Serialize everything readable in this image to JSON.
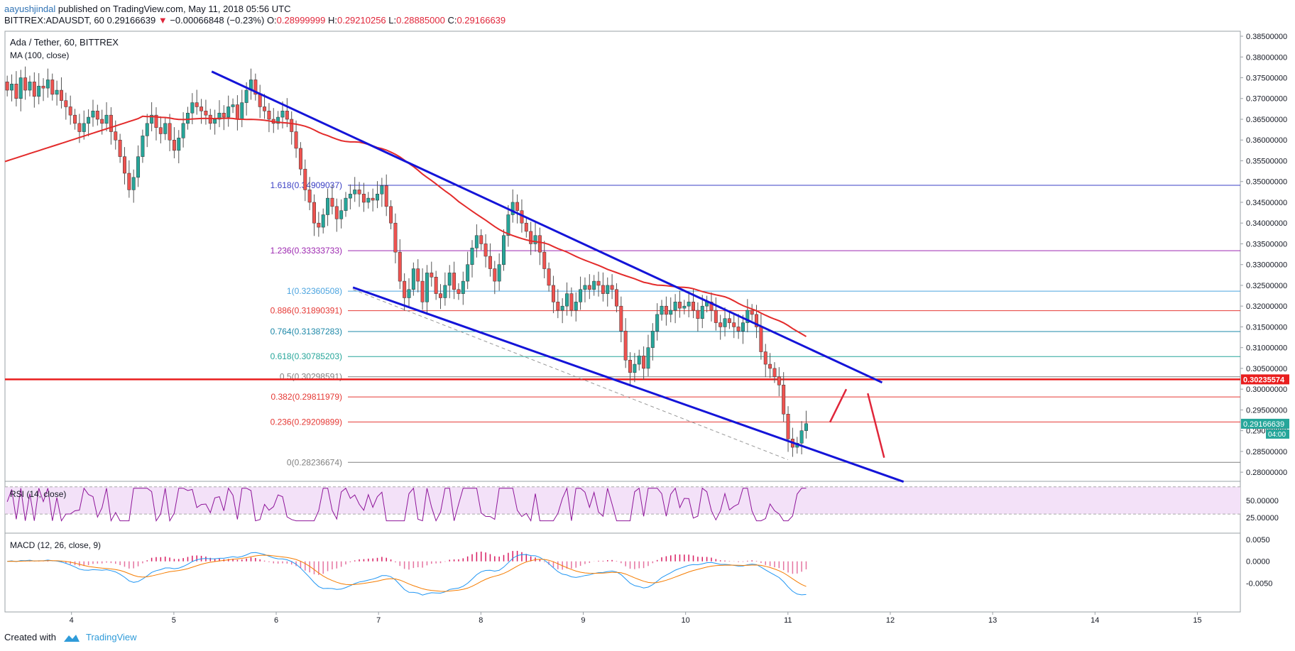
{
  "header": {
    "author": "aayushjindal",
    "published": " published on TradingView.com, May 11, 2018 05:56 UTC",
    "symbol": "BITTREX:ADAUSDT, 60",
    "last": "0.29166639",
    "arrow": "▼",
    "change": "−0.00066848 (−0.23%)",
    "o_label": "O:",
    "o": "0.28999999",
    "h_label": "H:",
    "h": "0.29210256",
    "l_label": "L:",
    "l": "0.28885000",
    "c_label": "C:",
    "c": "0.29166639"
  },
  "footer": {
    "created_with": "Created with",
    "brand": "TradingView"
  },
  "chart_data": {
    "type": "candlestick",
    "title": "Ada / Tether, 60, BITTREX",
    "indicator_label": "MA (100, close)",
    "price_axis": {
      "ticks": [
        "0.38500000",
        "0.38000000",
        "0.37500000",
        "0.37000000",
        "0.36500000",
        "0.36000000",
        "0.35500000",
        "0.35000000",
        "0.34500000",
        "0.34000000",
        "0.33500000",
        "0.33000000",
        "0.32500000",
        "0.32000000",
        "0.31500000",
        "0.31000000",
        "0.30500000",
        "0.30000000",
        "0.29500000",
        "0.29000000",
        "0.28500000",
        "0.28000000"
      ],
      "range": [
        0.2778,
        0.3862
      ]
    },
    "time_axis": {
      "labels": [
        "4",
        "5",
        "6",
        "7",
        "8",
        "9",
        "10",
        "11",
        "12",
        "13",
        "14",
        "15"
      ],
      "range": [
        3.35,
        15.42
      ]
    },
    "current_price": {
      "value": "0.29166639",
      "time_left": "04:00",
      "color": "#26a69a"
    },
    "horizontal_line": {
      "value": 0.30235574,
      "label": "0.30235574",
      "color": "#e91e1e"
    },
    "fibonacci": [
      {
        "ratio": "1.618",
        "value": 0.34909037,
        "label": "1.618(0.34909037)",
        "color": "#3a3fc4"
      },
      {
        "ratio": "1.236",
        "value": 0.33333733,
        "label": "1.236(0.33333733)",
        "color": "#9c27b0"
      },
      {
        "ratio": "1",
        "value": 0.32360508,
        "label": "1(0.32360508)",
        "color": "#4aa3df"
      },
      {
        "ratio": "0.886",
        "value": 0.31890391,
        "label": "0.886(0.31890391)",
        "color": "#e53935"
      },
      {
        "ratio": "0.764",
        "value": 0.31387283,
        "label": "0.764(0.31387283)",
        "color": "#1e88a8"
      },
      {
        "ratio": "0.618",
        "value": 0.30785203,
        "label": "0.618(0.30785203)",
        "color": "#26a69a"
      },
      {
        "ratio": "0.5",
        "value": 0.30298591,
        "label": "0.5(0.30298591)",
        "color": "#808080"
      },
      {
        "ratio": "0.382",
        "value": 0.29811979,
        "label": "0.382(0.29811979)",
        "color": "#e53935"
      },
      {
        "ratio": "0.236",
        "value": 0.29209899,
        "label": "0.236(0.29209899)",
        "color": "#e53935"
      },
      {
        "ratio": "0",
        "value": 0.28236674,
        "label": "0(0.28236674)",
        "color": "#808080"
      }
    ],
    "channel": {
      "color": "#1414d8",
      "upper": [
        [
          5.37,
          0.3765
        ],
        [
          11.92,
          0.3016
        ]
      ],
      "lower": [
        [
          6.75,
          0.3245
        ],
        [
          12.13,
          0.2777
        ]
      ]
    },
    "dashed_trend": [
      [
        6.75,
        0.324
      ],
      [
        11.0,
        0.283
      ]
    ],
    "projection": {
      "color": "#e0263a",
      "points": [
        [
          11.41,
          0.292
        ],
        [
          11.57,
          0.3
        ],
        [
          11.78,
          0.299
        ],
        [
          11.94,
          0.2835
        ]
      ]
    },
    "candles_hourly_close": [
      0.372,
      0.3735,
      0.37,
      0.375,
      0.372,
      0.374,
      0.3705,
      0.373,
      0.3725,
      0.3745,
      0.371,
      0.372,
      0.3695,
      0.368,
      0.366,
      0.364,
      0.362,
      0.364,
      0.3655,
      0.367,
      0.365,
      0.364,
      0.366,
      0.362,
      0.36,
      0.356,
      0.352,
      0.348,
      0.351,
      0.356,
      0.361,
      0.364,
      0.366,
      0.363,
      0.3615,
      0.364,
      0.36,
      0.3575,
      0.3605,
      0.364,
      0.3665,
      0.369,
      0.368,
      0.367,
      0.366,
      0.364,
      0.365,
      0.3665,
      0.3655,
      0.368,
      0.3685,
      0.365,
      0.369,
      0.372,
      0.3745,
      0.371,
      0.368,
      0.367,
      0.365,
      0.364,
      0.3655,
      0.367,
      0.365,
      0.362,
      0.358,
      0.353,
      0.348,
      0.345,
      0.34,
      0.339,
      0.342,
      0.346,
      0.344,
      0.341,
      0.343,
      0.346,
      0.347,
      0.348,
      0.347,
      0.345,
      0.346,
      0.3455,
      0.347,
      0.349,
      0.344,
      0.34,
      0.333,
      0.326,
      0.322,
      0.324,
      0.329,
      0.326,
      0.321,
      0.328,
      0.327,
      0.323,
      0.322,
      0.325,
      0.328,
      0.324,
      0.323,
      0.326,
      0.33,
      0.334,
      0.337,
      0.335,
      0.332,
      0.329,
      0.326,
      0.33,
      0.337,
      0.342,
      0.345,
      0.343,
      0.34,
      0.338,
      0.335,
      0.337,
      0.333,
      0.329,
      0.325,
      0.321,
      0.319,
      0.32,
      0.323,
      0.319,
      0.321,
      0.324,
      0.325,
      0.324,
      0.326,
      0.325,
      0.323,
      0.325,
      0.324,
      0.32,
      0.314,
      0.307,
      0.304,
      0.306,
      0.308,
      0.305,
      0.31,
      0.314,
      0.318,
      0.32,
      0.318,
      0.319,
      0.321,
      0.3195,
      0.32,
      0.321,
      0.319,
      0.317,
      0.32,
      0.321,
      0.319,
      0.316,
      0.315,
      0.317,
      0.316,
      0.315,
      0.314,
      0.316,
      0.319,
      0.318,
      0.315,
      0.309,
      0.306,
      0.305,
      0.303,
      0.301,
      0.294,
      0.288,
      0.286,
      0.287,
      0.29,
      0.2917
    ]
  },
  "rsi": {
    "label": "RSI (14, close)",
    "ticks": [
      "50.00000",
      "25.00000"
    ],
    "range": [
      5,
      75
    ],
    "band": [
      30,
      70
    ]
  },
  "macd": {
    "label": "MACD (12, 26, close, 9)",
    "ticks": [
      "0.0050",
      "0.0000",
      "-0.0050"
    ],
    "range": [
      -0.011,
      0.006
    ]
  }
}
